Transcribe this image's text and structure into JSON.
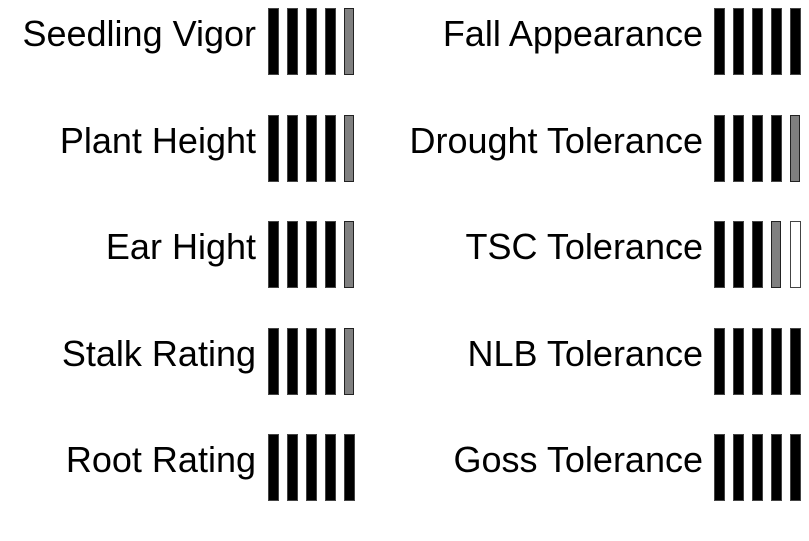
{
  "ratings_left": [
    {
      "label": "Seedling Vigor",
      "score": 4.5,
      "max": 5
    },
    {
      "label": "Plant Height",
      "score": 4.5,
      "max": 5
    },
    {
      "label": "Ear Hight",
      "score": 4.5,
      "max": 5
    },
    {
      "label": "Stalk Rating",
      "score": 4.5,
      "max": 5
    },
    {
      "label": "Root Rating",
      "score": 5,
      "max": 5
    }
  ],
  "ratings_right": [
    {
      "label": "Fall Appearance",
      "score": 5,
      "max": 5
    },
    {
      "label": "Drought Tolerance",
      "score": 4.5,
      "max": 5
    },
    {
      "label": "TSC Tolerance",
      "score": 3.5,
      "max": 5
    },
    {
      "label": "NLB Tolerance",
      "score": 5,
      "max": 5
    },
    {
      "label": "Goss Tolerance",
      "score": 5,
      "max": 5
    }
  ],
  "colors": {
    "full_bar": "#000000",
    "half_bar": "#808080",
    "label_text": "#000000",
    "background": "#ffffff"
  }
}
